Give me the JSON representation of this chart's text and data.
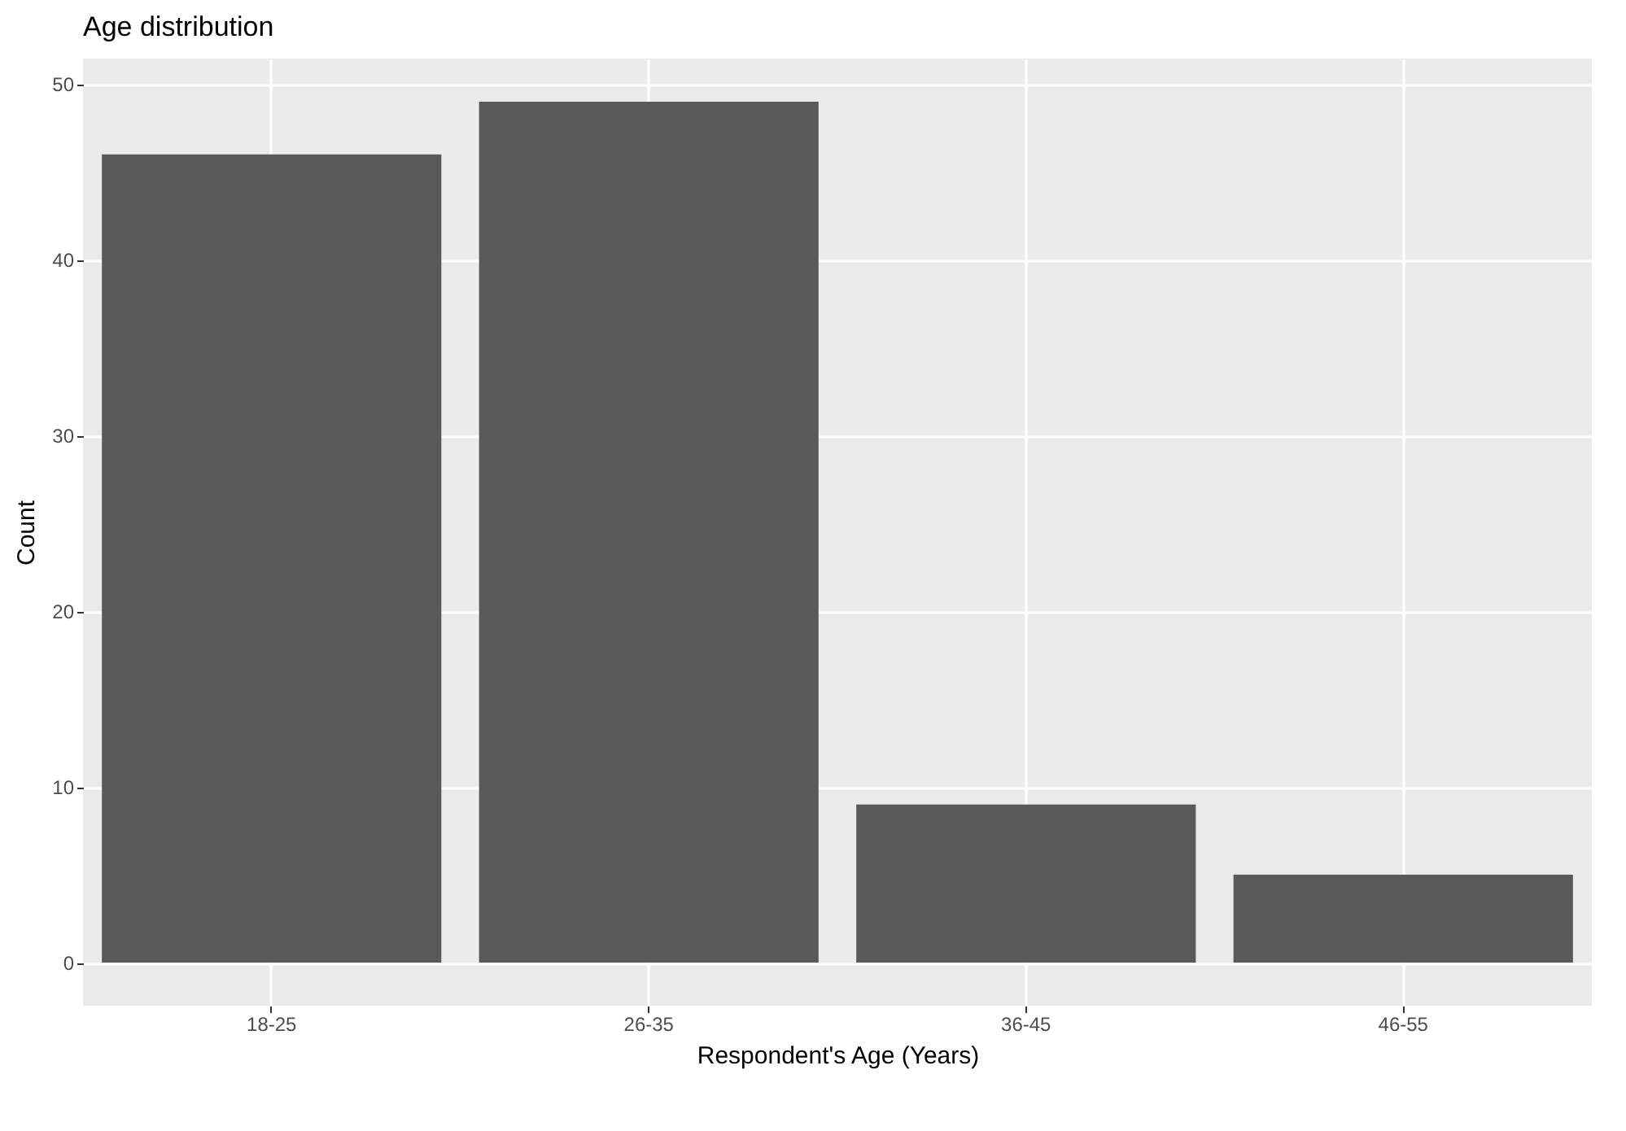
{
  "chart_data": {
    "type": "bar",
    "title": "Age distribution",
    "xlabel": "Respondent's Age (Years)",
    "ylabel": "Count",
    "categories": [
      "18-25",
      "26-35",
      "36-45",
      "46-55"
    ],
    "values": [
      46,
      49,
      9,
      5
    ],
    "color": "#595959",
    "ylim": [
      -2.45,
      51.45
    ],
    "yticks": [
      0,
      10,
      20,
      30,
      40,
      50
    ],
    "grid": true
  }
}
